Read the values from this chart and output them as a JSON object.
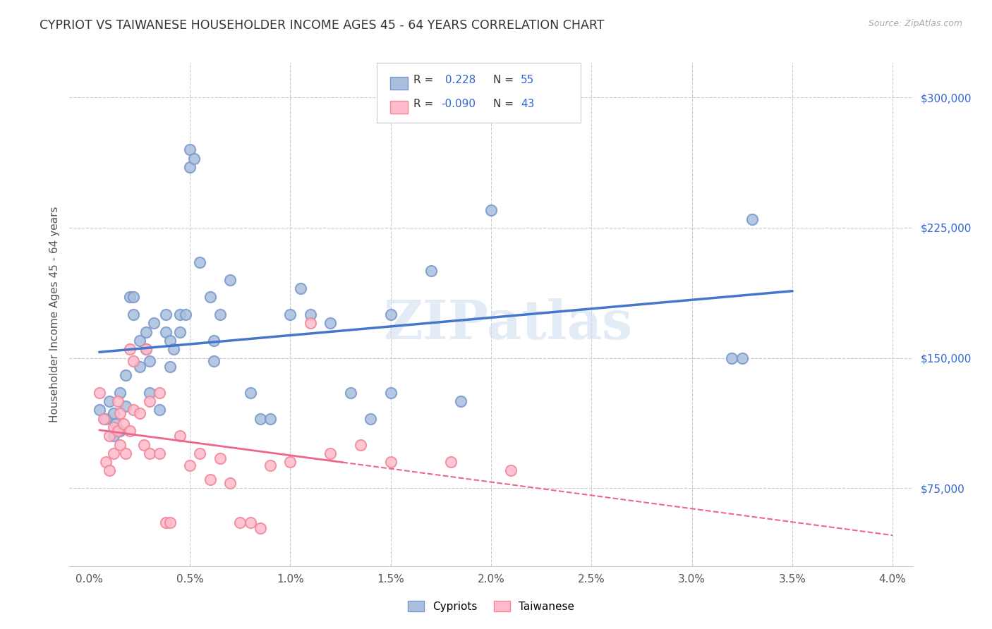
{
  "title": "CYPRIOT VS TAIWANESE HOUSEHOLDER INCOME AGES 45 - 64 YEARS CORRELATION CHART",
  "source": "Source: ZipAtlas.com",
  "ylabel": "Householder Income Ages 45 - 64 years",
  "xlabel_ticks": [
    "0.0%",
    "0.5%",
    "1.0%",
    "1.5%",
    "2.0%",
    "2.5%",
    "3.0%",
    "3.5%",
    "4.0%"
  ],
  "xlabel_vals": [
    0.0,
    0.005,
    0.01,
    0.015,
    0.02,
    0.025,
    0.03,
    0.035,
    0.04
  ],
  "ylabel_ticks": [
    "$75,000",
    "$150,000",
    "$225,000",
    "$300,000"
  ],
  "ylabel_vals": [
    75000,
    150000,
    225000,
    300000
  ],
  "xlim": [
    -0.001,
    0.041
  ],
  "ylim": [
    30000,
    320000
  ],
  "cypriot_color": "#aabfdd",
  "cypriot_edge": "#7799cc",
  "taiwanese_color": "#ffbbcc",
  "taiwanese_edge": "#ee8899",
  "trendline_cypriot": "#4477cc",
  "trendline_taiwanese": "#ee6688",
  "cypriot_R": 0.228,
  "cypriot_N": 55,
  "taiwanese_R": -0.09,
  "taiwanese_N": 43,
  "legend_cypriot": "Cypriots",
  "legend_taiwanese": "Taiwanese",
  "watermark": "ZIPatlas",
  "cypriot_x": [
    0.0005,
    0.0008,
    0.001,
    0.0012,
    0.0012,
    0.0013,
    0.0015,
    0.0015,
    0.0018,
    0.0018,
    0.002,
    0.0022,
    0.0022,
    0.0025,
    0.0025,
    0.0028,
    0.0028,
    0.003,
    0.003,
    0.0032,
    0.0035,
    0.0038,
    0.0038,
    0.004,
    0.004,
    0.0042,
    0.0045,
    0.0045,
    0.0048,
    0.005,
    0.005,
    0.0052,
    0.0055,
    0.006,
    0.0062,
    0.0062,
    0.0065,
    0.007,
    0.008,
    0.0085,
    0.009,
    0.01,
    0.0105,
    0.011,
    0.012,
    0.013,
    0.014,
    0.015,
    0.015,
    0.017,
    0.0185,
    0.02,
    0.032,
    0.0325,
    0.033
  ],
  "cypriot_y": [
    120000,
    115000,
    125000,
    118000,
    105000,
    112000,
    108000,
    130000,
    122000,
    140000,
    185000,
    185000,
    175000,
    145000,
    160000,
    165000,
    155000,
    148000,
    130000,
    170000,
    120000,
    175000,
    165000,
    160000,
    145000,
    155000,
    175000,
    165000,
    175000,
    270000,
    260000,
    265000,
    205000,
    185000,
    160000,
    148000,
    175000,
    195000,
    130000,
    115000,
    115000,
    175000,
    190000,
    175000,
    170000,
    130000,
    115000,
    175000,
    130000,
    200000,
    125000,
    235000,
    150000,
    150000,
    230000
  ],
  "taiwanese_x": [
    0.0005,
    0.0007,
    0.0008,
    0.001,
    0.001,
    0.0012,
    0.0012,
    0.0014,
    0.0014,
    0.0015,
    0.0015,
    0.0017,
    0.0018,
    0.002,
    0.002,
    0.0022,
    0.0022,
    0.0025,
    0.0027,
    0.0028,
    0.003,
    0.003,
    0.0035,
    0.0035,
    0.0038,
    0.004,
    0.0045,
    0.005,
    0.0055,
    0.006,
    0.0065,
    0.007,
    0.0075,
    0.008,
    0.0085,
    0.009,
    0.01,
    0.011,
    0.012,
    0.0135,
    0.015,
    0.018,
    0.021
  ],
  "taiwanese_y": [
    130000,
    115000,
    90000,
    105000,
    85000,
    110000,
    95000,
    125000,
    108000,
    118000,
    100000,
    112000,
    95000,
    155000,
    108000,
    148000,
    120000,
    118000,
    100000,
    155000,
    125000,
    95000,
    130000,
    95000,
    55000,
    55000,
    105000,
    88000,
    95000,
    80000,
    92000,
    78000,
    55000,
    55000,
    52000,
    88000,
    90000,
    170000,
    95000,
    100000,
    90000,
    90000,
    85000
  ]
}
